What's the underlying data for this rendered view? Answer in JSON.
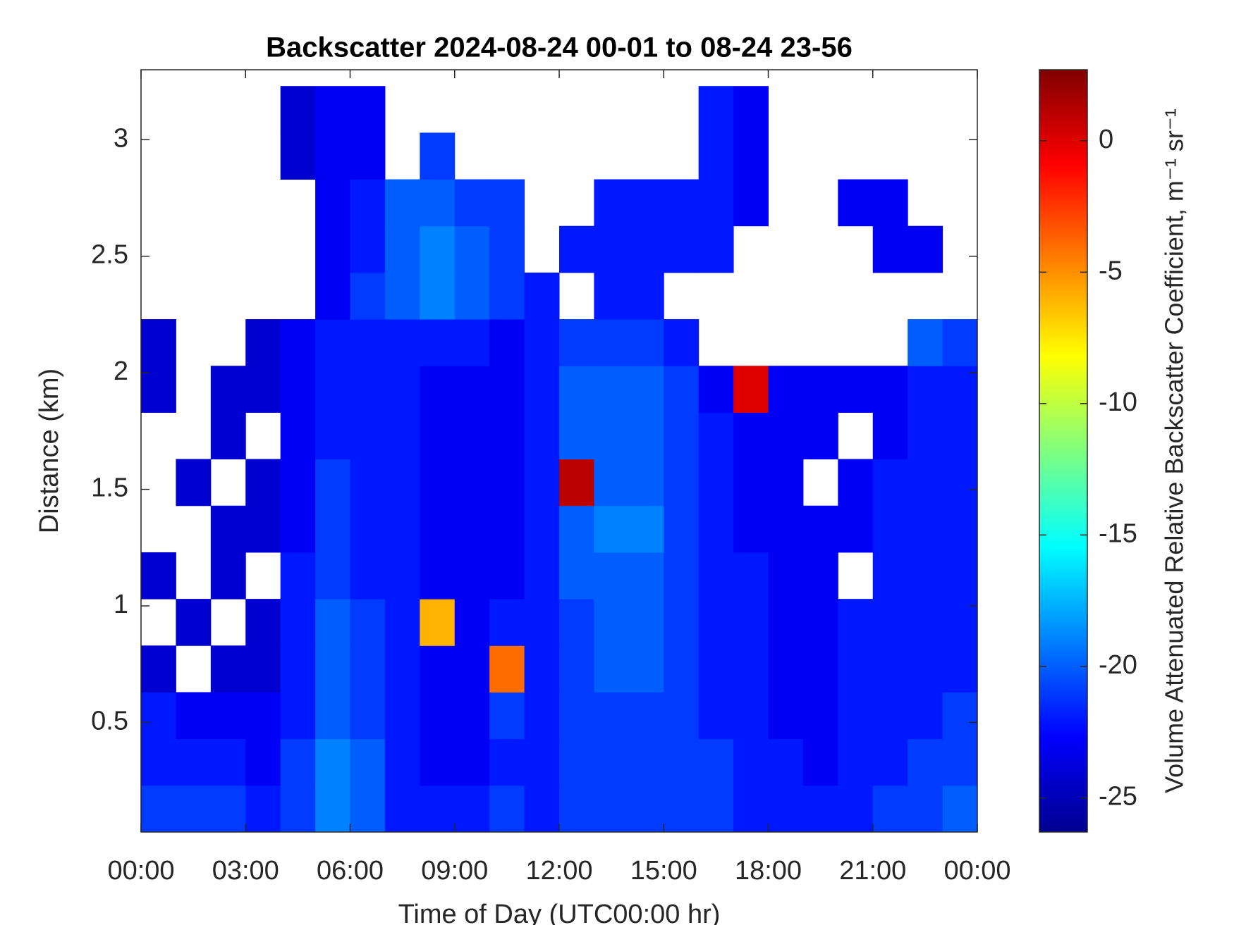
{
  "chart_data": {
    "type": "heatmap",
    "title": "Backscatter 2024-08-24 00-01 to 08-24 23-56",
    "x_label": "Time of Day (UTC00:00 hr)",
    "y_label": "Distance (km)",
    "colorbar_label": "Volume Attenuated Relative Backscatter Coefficient, m⁻¹ sr⁻¹",
    "colormap": "jet",
    "x": [
      0.5,
      1.5,
      2.5,
      3.5,
      4.5,
      5.5,
      6.5,
      7.5,
      8.5,
      9.5,
      10.5,
      11.5,
      12.5,
      13.5,
      14.5,
      15.5,
      16.5,
      17.5,
      18.5,
      19.5,
      20.5,
      21.5,
      22.5,
      23.5
    ],
    "y": [
      0.13,
      0.33,
      0.53,
      0.73,
      0.93,
      1.13,
      1.33,
      1.53,
      1.73,
      1.93,
      2.13,
      2.33,
      2.53,
      2.73,
      2.93,
      3.13
    ],
    "z": [
      [
        -21,
        -21,
        -21,
        -22,
        -21,
        -19,
        -20,
        -22,
        -22,
        -22,
        -21,
        -22,
        -21,
        -21,
        -21,
        -21,
        -21,
        -22,
        -22,
        -22,
        -22,
        -21,
        -21,
        -20
      ],
      [
        -22,
        -22,
        -22,
        -23,
        -21,
        -19,
        -20,
        -22,
        -23,
        -23,
        -22,
        -22,
        -21,
        -21,
        -21,
        -21,
        -21,
        -22,
        -22,
        -23,
        -22,
        -22,
        -21,
        -21
      ],
      [
        -22,
        -23,
        -23,
        -23,
        -22,
        -20,
        -21,
        -22,
        -23,
        -23,
        -21,
        -22,
        -21,
        -21,
        -21,
        -21,
        -22,
        -22,
        -23,
        -23,
        -22,
        -22,
        -22,
        -21
      ],
      [
        -24,
        null,
        -24,
        -24,
        -22,
        -20,
        -21,
        -22,
        -23,
        -23,
        -4,
        -22,
        -21,
        -20,
        -20,
        -21,
        -22,
        -22,
        -23,
        -23,
        -22,
        -22,
        -22,
        -22
      ],
      [
        null,
        -24,
        null,
        -24,
        -22,
        -20,
        -21,
        -22,
        -6,
        -23,
        -22,
        -22,
        -21,
        -20,
        -20,
        -21,
        -22,
        -22,
        -23,
        -23,
        -22,
        -22,
        -22,
        -22
      ],
      [
        -24,
        null,
        -24,
        null,
        -22,
        -21,
        -22,
        -22,
        -23,
        -23,
        -23,
        -22,
        -20,
        -20,
        -20,
        -21,
        -22,
        -22,
        -23,
        -23,
        null,
        -22,
        -22,
        -22
      ],
      [
        null,
        null,
        -24,
        -24,
        -23,
        -21,
        -22,
        -22,
        -23,
        -23,
        -23,
        -22,
        -20,
        -19,
        -19,
        -21,
        -22,
        -23,
        -23,
        -23,
        -23,
        -22,
        -22,
        -22
      ],
      [
        null,
        -24,
        null,
        -24,
        -23,
        -21,
        -22,
        -22,
        -23,
        -23,
        -23,
        -22,
        1,
        -20,
        -20,
        -21,
        -22,
        -23,
        -23,
        null,
        -23,
        -22,
        -22,
        -22
      ],
      [
        null,
        null,
        -24,
        null,
        -23,
        -22,
        -22,
        -22,
        -23,
        -23,
        -23,
        -22,
        -20,
        -20,
        -20,
        -21,
        -22,
        -23,
        -23,
        -23,
        null,
        -23,
        -22,
        -22
      ],
      [
        -24,
        null,
        -24,
        -24,
        -23,
        -22,
        -22,
        -22,
        -23,
        -23,
        -23,
        -22,
        -20,
        -20,
        -20,
        -21,
        -23,
        0,
        -23,
        -23,
        -23,
        -23,
        -22,
        -22
      ],
      [
        -24,
        null,
        null,
        -24,
        -23,
        -22,
        -22,
        -22,
        -22,
        -22,
        -23,
        -22,
        -21,
        -21,
        -21,
        -22,
        null,
        null,
        null,
        null,
        null,
        null,
        -20,
        -21
      ],
      [
        null,
        null,
        null,
        null,
        null,
        -23,
        -21,
        -20,
        -19,
        -20,
        -21,
        -22,
        null,
        -22,
        -22,
        null,
        null,
        null,
        null,
        null,
        null,
        null,
        null,
        null
      ],
      [
        null,
        null,
        null,
        null,
        null,
        -23,
        -22,
        -20,
        -19,
        -20,
        -21,
        null,
        -22,
        -22,
        -22,
        -22,
        -22,
        null,
        null,
        null,
        null,
        -23,
        -23,
        null
      ],
      [
        null,
        null,
        null,
        null,
        null,
        -23,
        -22,
        -20,
        -20,
        -21,
        -21,
        null,
        null,
        -22,
        -22,
        -22,
        -22,
        -23,
        null,
        null,
        -23,
        -23,
        null,
        null
      ],
      [
        null,
        null,
        null,
        null,
        -24,
        -23,
        -23,
        null,
        -21,
        null,
        null,
        null,
        null,
        null,
        null,
        null,
        -22,
        -23,
        null,
        null,
        null,
        null,
        null,
        null
      ],
      [
        null,
        null,
        null,
        null,
        -24,
        -23,
        -23,
        null,
        null,
        null,
        null,
        null,
        null,
        null,
        null,
        null,
        -22,
        -23,
        null,
        null,
        null,
        null,
        null,
        null
      ]
    ],
    "xlim": [
      0,
      24
    ],
    "xticks": [
      {
        "value": 0,
        "label": "00:00"
      },
      {
        "value": 3,
        "label": "03:00"
      },
      {
        "value": 6,
        "label": "06:00"
      },
      {
        "value": 9,
        "label": "09:00"
      },
      {
        "value": 12,
        "label": "12:00"
      },
      {
        "value": 15,
        "label": "15:00"
      },
      {
        "value": 18,
        "label": "18:00"
      },
      {
        "value": 21,
        "label": "21:00"
      },
      {
        "value": 24,
        "label": "00:00"
      }
    ],
    "ylim": [
      0.03,
      3.3
    ],
    "yticks": [
      0.5,
      1,
      1.5,
      2,
      2.5,
      3
    ],
    "clim": [
      -26.3,
      2.7
    ],
    "cticks": [
      -25,
      -20,
      -15,
      -10,
      -5,
      0
    ]
  }
}
